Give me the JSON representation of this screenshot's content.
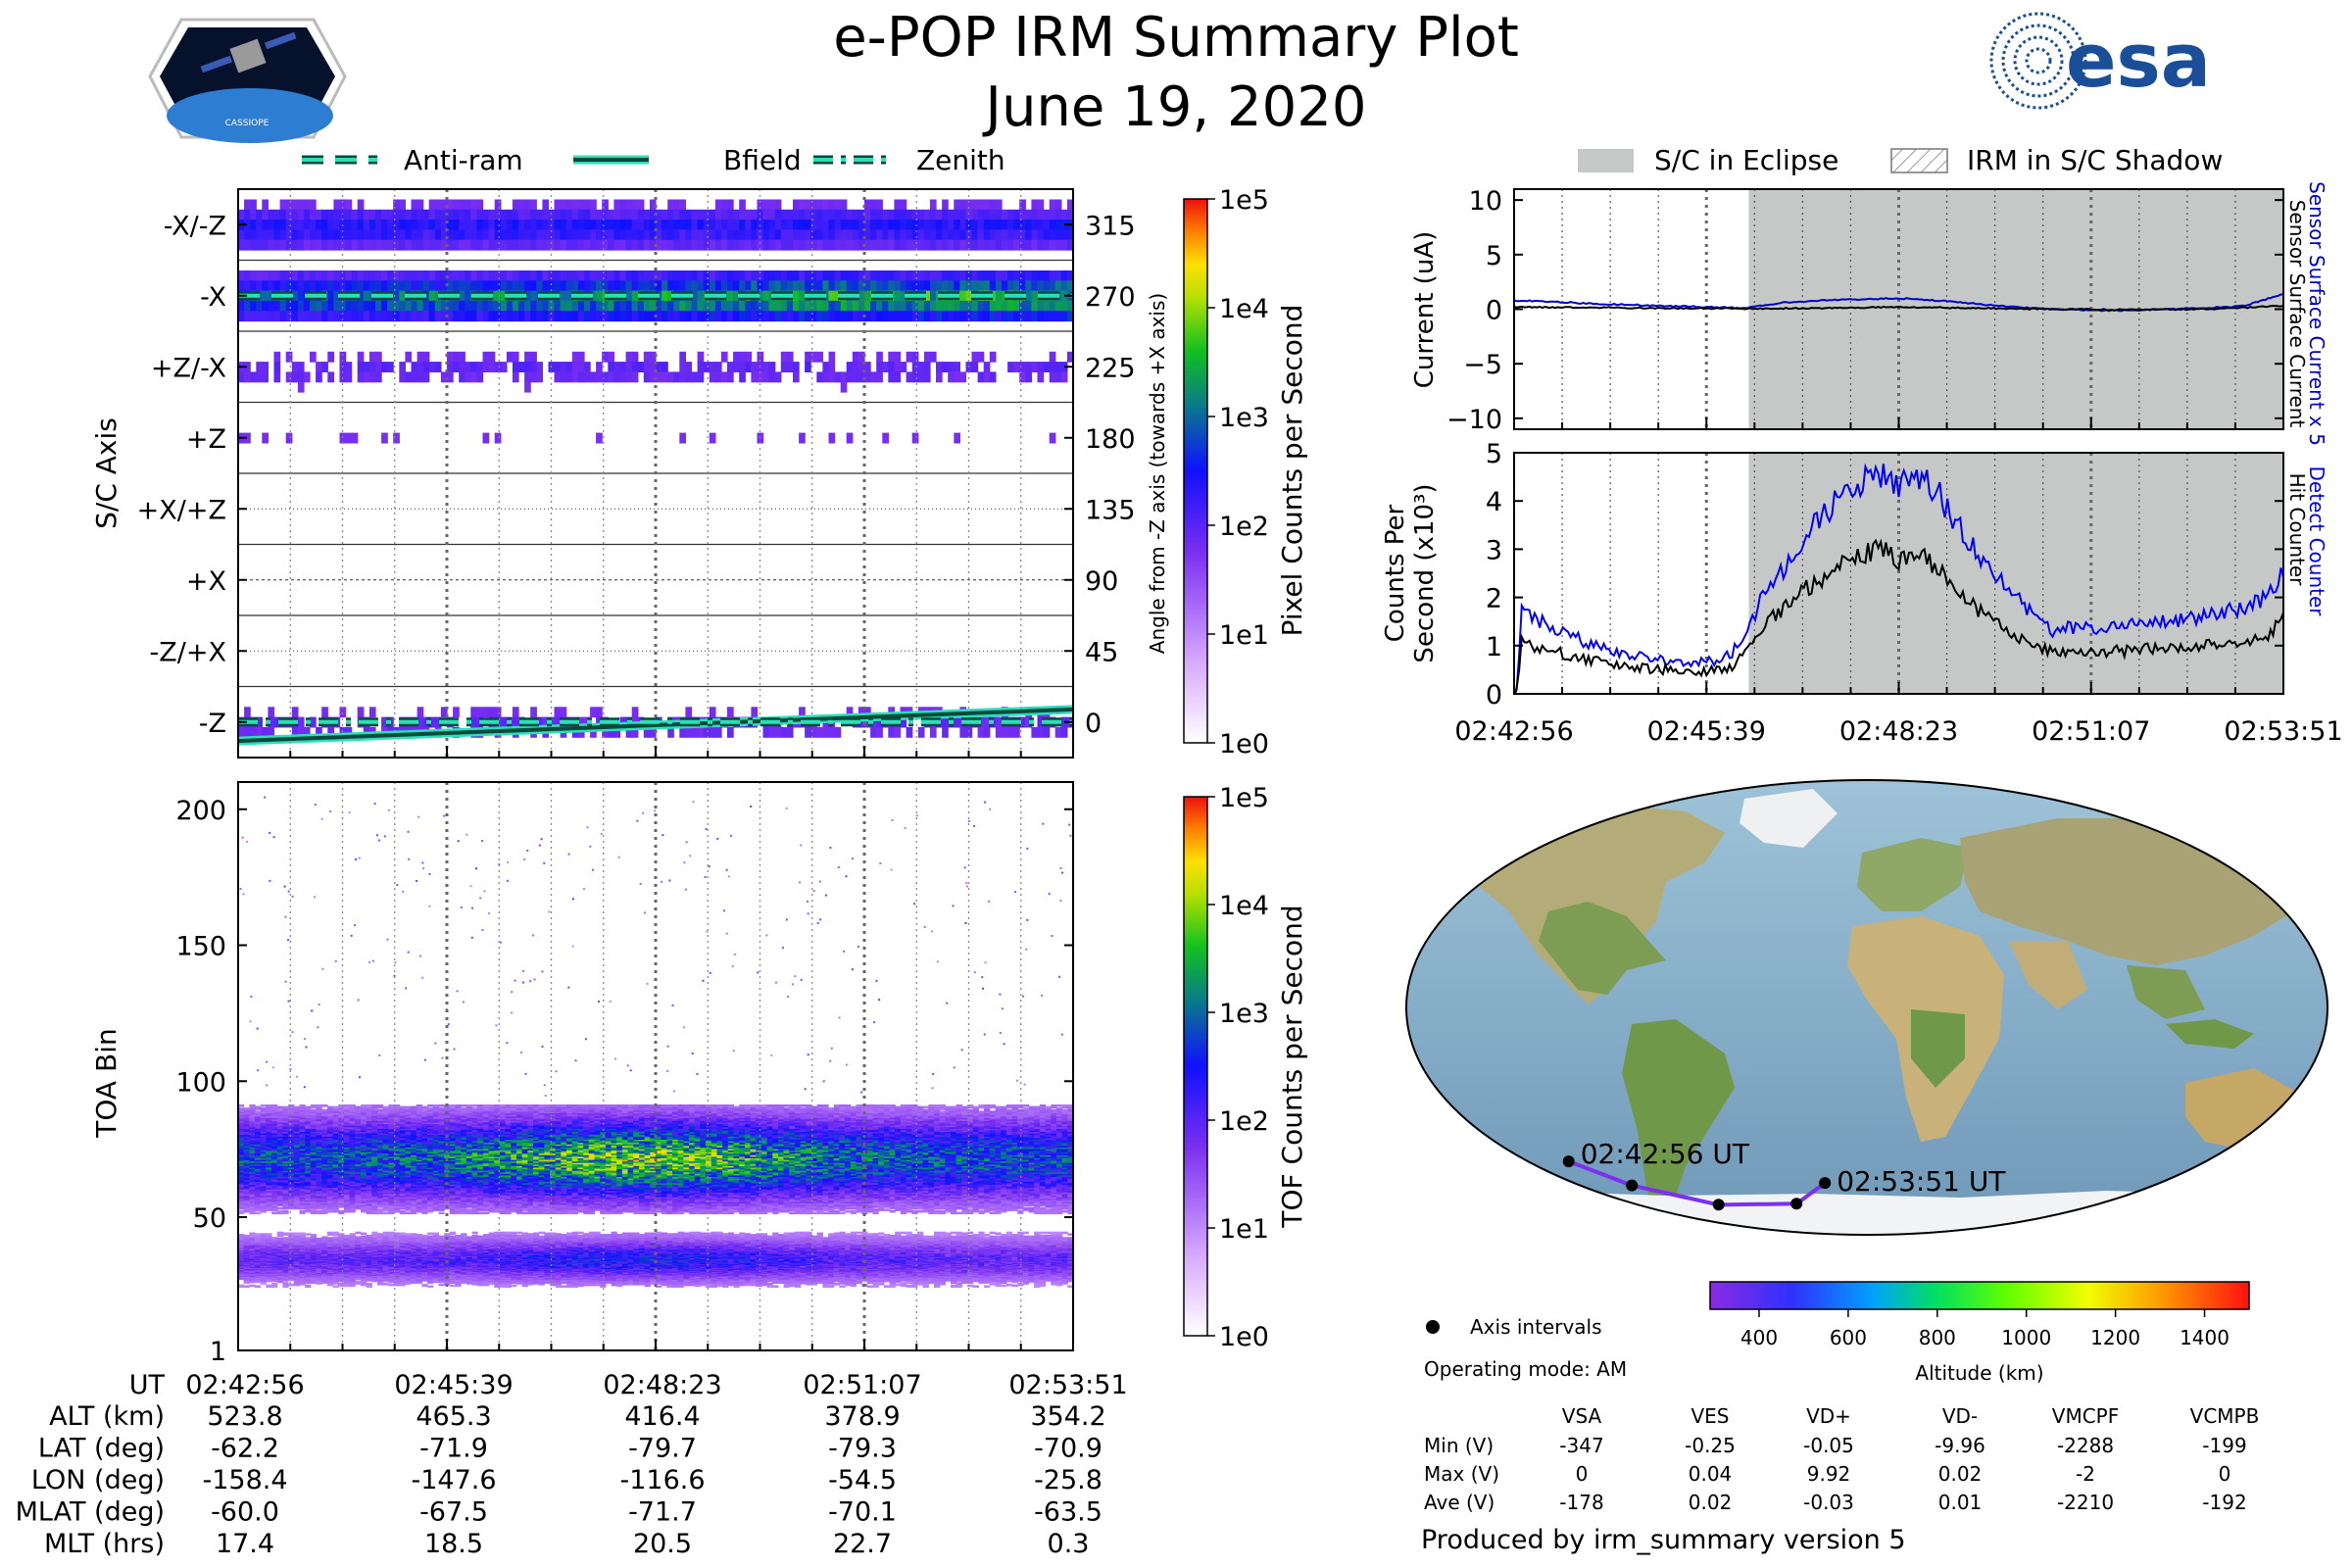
{
  "title": "e-POP IRM Summary Plot",
  "date": "June 19, 2020",
  "logos": {
    "left": "CASSIOPE",
    "right": "esa"
  },
  "colors": {
    "eclipse": "#c6c8c8",
    "sensor_current": "#0000cc",
    "counter_blue": "#0000ff",
    "bfield_line": "#0a4a3c",
    "bfield_outline": "#29e0b8",
    "track": "#7b2ff0"
  },
  "legend_top": [
    "Anti-ram",
    "Bfield",
    "Zenith"
  ],
  "legend_right": [
    "S/C in Eclipse",
    "IRM in S/C Shadow"
  ],
  "footer": "Produced by irm_summary version 5",
  "chart_data": [
    {
      "id": "sc-axis",
      "type": "heatmap",
      "ylabel": "S/C Axis",
      "ylabel_right": "Angle from -Z axis (towards +X axis)",
      "categories": [
        "-X/-Z",
        "-X",
        "+Z/-X",
        "+Z",
        "+X/+Z",
        "+X",
        "-Z/+X",
        "-Z"
      ],
      "angle_ticks": [
        "315",
        "270",
        "225",
        "180",
        "135",
        "90",
        "45",
        "0"
      ],
      "ylim": [
        -22.5,
        337.5
      ],
      "colorbar": {
        "label": "Pixel Counts per Second",
        "ticks": [
          "1e0",
          "1e1",
          "1e2",
          "1e3",
          "1e4",
          "1e5"
        ]
      },
      "band_intensity": [
        0.35,
        0.62,
        0.2,
        0.12,
        0.05,
        0.0,
        0.08,
        0.18
      ],
      "bfield": {
        "start": -12,
        "end": 8
      },
      "antiram": 270,
      "zenith": 0
    },
    {
      "id": "toa",
      "type": "heatmap",
      "ylabel": "TOA Bin",
      "yticks": [
        "200",
        "150",
        "100",
        "50",
        "1"
      ],
      "ylim": [
        1,
        210
      ],
      "colorbar": {
        "label": "TOF Counts per Second",
        "ticks": [
          "1e0",
          "1e1",
          "1e2",
          "1e3",
          "1e4",
          "1e5"
        ]
      },
      "bands": [
        {
          "center": 72,
          "width": 10,
          "peak": 0.55
        },
        {
          "center": 35,
          "width": 5,
          "peak": 0.3
        }
      ]
    },
    {
      "id": "current",
      "type": "line",
      "ylabel": "Current (uA)",
      "ylabel_right": [
        "Sensor Surface Current x 5",
        "Sensor Surface Current"
      ],
      "yticks": [
        "10",
        "5",
        "0",
        "−5",
        "−10"
      ],
      "ylim": [
        -11,
        11
      ],
      "eclipse_start": 0.305,
      "series": [
        {
          "name": "Sensor Surface Current x 5",
          "color": "#0000cc",
          "x": [
            0,
            0.05,
            0.1,
            0.15,
            0.2,
            0.25,
            0.3,
            0.35,
            0.4,
            0.45,
            0.5,
            0.55,
            0.6,
            0.65,
            0.7,
            0.75,
            0.8,
            0.85,
            0.9,
            0.95,
            1.0
          ],
          "values": [
            0.8,
            0.7,
            0.5,
            0.4,
            0.3,
            0.2,
            0.1,
            0.6,
            0.8,
            0.9,
            1.0,
            0.8,
            0.5,
            0.2,
            0.0,
            -0.1,
            -0.1,
            0.0,
            0.1,
            0.3,
            1.4
          ]
        },
        {
          "name": "Sensor Surface Current",
          "color": "#000000",
          "x": [
            0,
            0.1,
            0.2,
            0.3,
            0.4,
            0.5,
            0.6,
            0.7,
            0.8,
            0.9,
            1.0
          ],
          "values": [
            0.2,
            0.15,
            0.1,
            0.05,
            0.1,
            0.2,
            0.1,
            0.0,
            -0.05,
            0.0,
            0.3
          ]
        }
      ]
    },
    {
      "id": "counts",
      "type": "line",
      "ylabel": [
        "Counts Per",
        "Second (x10³)"
      ],
      "ylabel_right": [
        "Detect Counter",
        "Hit Counter"
      ],
      "yticks": [
        "5",
        "4",
        "3",
        "2",
        "1",
        "0"
      ],
      "ylim": [
        0,
        5
      ],
      "xticks": [
        "02:42:56",
        "02:45:39",
        "02:48:23",
        "02:51:07",
        "02:53:51"
      ],
      "eclipse_start": 0.305,
      "series": [
        {
          "name": "Detect Counter",
          "color": "#0000ff",
          "x": [
            0,
            0.005,
            0.01,
            0.02,
            0.05,
            0.1,
            0.15,
            0.2,
            0.25,
            0.28,
            0.3,
            0.32,
            0.35,
            0.38,
            0.42,
            0.45,
            0.48,
            0.5,
            0.52,
            0.55,
            0.58,
            0.6,
            0.62,
            0.65,
            0.68,
            0.7,
            0.72,
            0.75,
            0.8,
            0.85,
            0.9,
            0.95,
            0.98,
            1.0
          ],
          "values": [
            0,
            0.2,
            1.8,
            1.6,
            1.4,
            1.0,
            0.8,
            0.7,
            0.65,
            0.8,
            1.2,
            1.9,
            2.6,
            3.3,
            4.0,
            4.4,
            4.6,
            4.3,
            4.6,
            4.2,
            3.4,
            3.0,
            2.6,
            2.0,
            1.6,
            1.3,
            1.4,
            1.35,
            1.4,
            1.5,
            1.6,
            1.8,
            2.0,
            2.6
          ]
        },
        {
          "name": "Hit Counter",
          "color": "#000000",
          "x": [
            0,
            0.005,
            0.01,
            0.02,
            0.05,
            0.1,
            0.15,
            0.2,
            0.25,
            0.28,
            0.3,
            0.32,
            0.35,
            0.38,
            0.42,
            0.45,
            0.48,
            0.5,
            0.52,
            0.55,
            0.58,
            0.6,
            0.62,
            0.65,
            0.68,
            0.7,
            0.72,
            0.75,
            0.8,
            0.85,
            0.9,
            0.95,
            0.98,
            1.0
          ],
          "values": [
            0,
            0.1,
            1.1,
            1.0,
            0.9,
            0.7,
            0.55,
            0.5,
            0.45,
            0.55,
            0.8,
            1.3,
            1.8,
            2.2,
            2.6,
            2.9,
            3.0,
            2.7,
            3.0,
            2.6,
            2.0,
            1.8,
            1.5,
            1.2,
            1.0,
            0.85,
            0.9,
            0.85,
            0.9,
            0.95,
            1.0,
            1.1,
            1.2,
            1.6
          ]
        }
      ]
    },
    {
      "id": "orbit-map",
      "type": "scatter",
      "colorbar": {
        "label": "Altitude (km)",
        "ticks": [
          "400",
          "600",
          "800",
          "1000",
          "1200",
          "1400"
        ],
        "range": [
          290,
          1500
        ]
      },
      "start_label": "02:42:56 UT",
      "end_label": "02:53:51 UT",
      "legend": "Axis intervals",
      "points": [
        {
          "lon": -158.4,
          "lat": -62.2
        },
        {
          "lon": -147.6,
          "lat": -71.9
        },
        {
          "lon": -116.6,
          "lat": -79.7
        },
        {
          "lon": -54.5,
          "lat": -79.3
        },
        {
          "lon": -25.8,
          "lat": -70.9
        }
      ]
    }
  ],
  "ephemeris": {
    "header": "UT",
    "times": [
      "02:42:56",
      "02:45:39",
      "02:48:23",
      "02:51:07",
      "02:53:51"
    ],
    "rows": [
      {
        "label": "ALT (km)",
        "values": [
          "523.8",
          "465.3",
          "416.4",
          "378.9",
          "354.2"
        ]
      },
      {
        "label": "LAT (deg)",
        "values": [
          "-62.2",
          "-71.9",
          "-79.7",
          "-79.3",
          "-70.9"
        ]
      },
      {
        "label": "LON (deg)",
        "values": [
          "-158.4",
          "-147.6",
          "-116.6",
          "-54.5",
          "-25.8"
        ]
      },
      {
        "label": "MLAT (deg)",
        "values": [
          "-60.0",
          "-67.5",
          "-71.7",
          "-70.1",
          "-63.5"
        ]
      },
      {
        "label": "MLT (hrs)",
        "values": [
          "17.4",
          "18.5",
          "20.5",
          "22.7",
          "0.3"
        ]
      }
    ]
  },
  "voltage": {
    "mode": "Operating mode: AM",
    "headers": [
      "VSA",
      "VES",
      "VD+",
      "VD-",
      "VMCPF",
      "VCMPB"
    ],
    "rows": [
      {
        "label": "Min (V)",
        "values": [
          "-347",
          "-0.25",
          "-0.05",
          "-9.96",
          "-2288",
          "-199"
        ]
      },
      {
        "label": "Max (V)",
        "values": [
          "0",
          "0.04",
          "9.92",
          "0.02",
          "-2",
          "0"
        ]
      },
      {
        "label": "Ave (V)",
        "values": [
          "-178",
          "0.02",
          "-0.03",
          "0.01",
          "-2210",
          "-192"
        ]
      }
    ]
  }
}
